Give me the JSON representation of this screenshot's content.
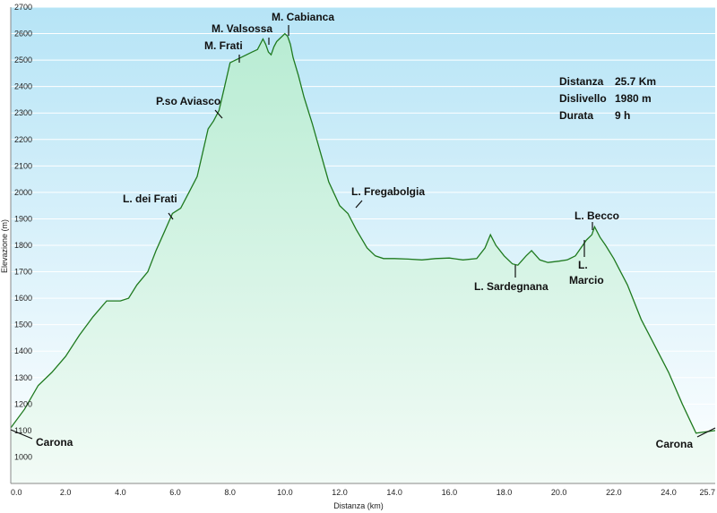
{
  "chart_data": {
    "type": "area",
    "xlabel": "Distanza (km)",
    "ylabel": "Elevazione (m)",
    "xlim": [
      0,
      25.7
    ],
    "ylim": [
      900,
      2700
    ],
    "grid": true,
    "colors": {
      "line": "#1f7a1f",
      "fill_top": "#b8ecd3",
      "fill_bottom": "#f2fbf6",
      "bg_top": "#b6e4f6",
      "bg_bottom": "#ffffff",
      "grid": "#ffffff"
    },
    "x_ticks": [
      {
        "v": 0,
        "label": "0.0"
      },
      {
        "v": 2,
        "label": "2.0"
      },
      {
        "v": 4,
        "label": "4.0"
      },
      {
        "v": 6,
        "label": "6.0"
      },
      {
        "v": 8,
        "label": "8.0"
      },
      {
        "v": 10,
        "label": "10.0"
      },
      {
        "v": 12,
        "label": "12.0"
      },
      {
        "v": 14,
        "label": "14.0"
      },
      {
        "v": 16,
        "label": "16.0"
      },
      {
        "v": 18,
        "label": "18.0"
      },
      {
        "v": 20,
        "label": "20.0"
      },
      {
        "v": 22,
        "label": "22.0"
      },
      {
        "v": 24,
        "label": "24.0"
      },
      {
        "v": 25.7,
        "label": "25.7"
      }
    ],
    "y_ticks": [
      1000,
      1100,
      1200,
      1300,
      1400,
      1500,
      1600,
      1700,
      1800,
      1900,
      2000,
      2100,
      2200,
      2300,
      2400,
      2500,
      2600,
      2700
    ],
    "series": [
      {
        "x": [
          0,
          0.5,
          1,
          1.5,
          2,
          2.5,
          3,
          3.5,
          4,
          4.3,
          4.6,
          5,
          5.3,
          5.6,
          5.9,
          6.2,
          6.5,
          6.8,
          7.0,
          7.2,
          7.4,
          7.6,
          7.8,
          8.0,
          8.2,
          8.4,
          8.6,
          8.8,
          9.0,
          9.2,
          9.3,
          9.4,
          9.5,
          9.6,
          9.7,
          9.8,
          10.0,
          10.1,
          10.2,
          10.3,
          10.5,
          10.7,
          11.0,
          11.3,
          11.6,
          12.0,
          12.3,
          12.6,
          13.0,
          13.3,
          13.6,
          14.0,
          14.5,
          15.0,
          15.5,
          16.0,
          16.5,
          17.0,
          17.3,
          17.5,
          17.7,
          18.0,
          18.3,
          18.5,
          18.8,
          19.0,
          19.3,
          19.6,
          20.0,
          20.3,
          20.6,
          20.8,
          21.0,
          21.2,
          21.3,
          21.5,
          21.7,
          22.0,
          22.5,
          23.0,
          23.5,
          24.0,
          24.5,
          25.0,
          25.7
        ],
        "y": [
          1110,
          1180,
          1270,
          1320,
          1380,
          1460,
          1530,
          1590,
          1590,
          1600,
          1650,
          1700,
          1780,
          1850,
          1920,
          1940,
          2000,
          2060,
          2150,
          2240,
          2270,
          2310,
          2400,
          2490,
          2500,
          2510,
          2520,
          2530,
          2540,
          2580,
          2560,
          2530,
          2520,
          2550,
          2570,
          2580,
          2600,
          2590,
          2560,
          2510,
          2440,
          2360,
          2260,
          2150,
          2040,
          1950,
          1920,
          1860,
          1790,
          1760,
          1750,
          1750,
          1748,
          1745,
          1750,
          1752,
          1745,
          1750,
          1790,
          1840,
          1800,
          1760,
          1730,
          1725,
          1760,
          1780,
          1745,
          1735,
          1740,
          1745,
          1760,
          1790,
          1820,
          1840,
          1870,
          1830,
          1800,
          1750,
          1650,
          1520,
          1420,
          1320,
          1200,
          1090,
          1100
        ]
      }
    ],
    "annotations": [
      {
        "label": "Carona",
        "x": 0.0,
        "y": 1110
      },
      {
        "label": "L. dei Frati",
        "x": 6.0,
        "y": 1920
      },
      {
        "label": "P.so Aviasco",
        "x": 7.7,
        "y": 2310
      },
      {
        "label": "M. Frati",
        "x": 8.4,
        "y": 2505
      },
      {
        "label": "M. Valsossa",
        "x": 9.4,
        "y": 2575
      },
      {
        "label": "M. Cabianca",
        "x": 10.2,
        "y": 2610
      },
      {
        "label": "L. Fregabolgia",
        "x": 12.5,
        "y": 1950
      },
      {
        "label": "L. Sardegnana",
        "x": 18.4,
        "y": 1725
      },
      {
        "label": "L.",
        "x": 20.9,
        "y": 1830
      },
      {
        "label": "Marcio",
        "x": 20.9,
        "y": 1830
      },
      {
        "label": "L. Becco",
        "x": 21.3,
        "y": 1870
      },
      {
        "label": "Carona",
        "x": 25.7,
        "y": 1100
      }
    ],
    "info": {
      "distance_label": "Distanza",
      "distance_value": "25.7 Km",
      "climb_label": "Dislivello",
      "climb_value": "1980 m",
      "duration_label": "Durata",
      "duration_value": "9 h"
    }
  }
}
